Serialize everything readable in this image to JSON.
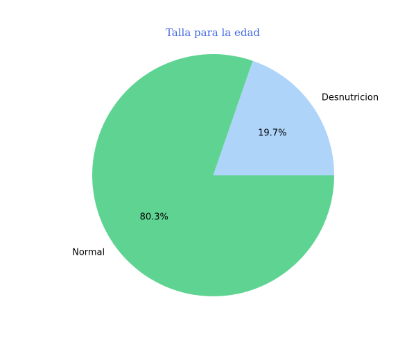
{
  "chart_data": {
    "type": "pie",
    "title": "Talla para la edad",
    "slices": [
      {
        "label": "Desnutricion",
        "value": 19.7,
        "pct_label": "19.7%",
        "color": "#aed4fa"
      },
      {
        "label": "Normal",
        "value": 80.3,
        "pct_label": "80.3%",
        "color": "#5fd492"
      }
    ],
    "start_angle_deg": 0,
    "direction": "counterclockwise"
  },
  "colors": {
    "title": "#4169e1",
    "background": "#ffffff"
  }
}
